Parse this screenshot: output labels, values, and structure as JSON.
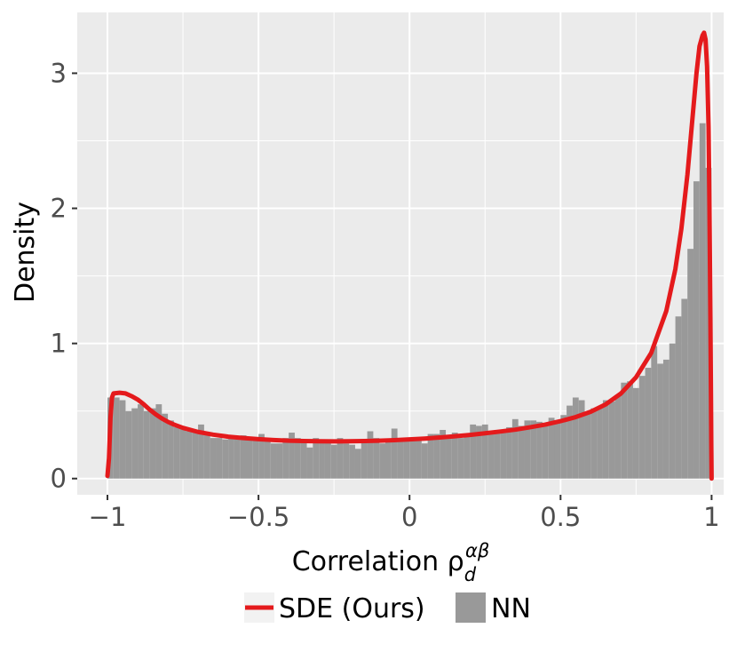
{
  "chart_data": {
    "type": "histogram-density",
    "xlabel": "Correlation ρ",
    "xlabel_sub": "d",
    "xlabel_sup": "αβ",
    "ylabel": "Density",
    "xlim": [
      -1.1,
      1.04
    ],
    "ylim": [
      -0.12,
      3.45
    ],
    "x_ticks": [
      -1,
      -0.5,
      0,
      0.5,
      1
    ],
    "x_tick_labels": [
      "−1",
      "−0.5",
      "0",
      "0.5",
      "1"
    ],
    "y_ticks": [
      0,
      1,
      2,
      3
    ],
    "y_tick_labels": [
      "0",
      "1",
      "2",
      "3"
    ],
    "grid": true,
    "legend_position": "bottom",
    "colors": {
      "panel": "#ebebeb",
      "grid": "#ffffff",
      "line": "#e41a1c",
      "bar": "#999999"
    },
    "series": [
      {
        "name": "SDE (Ours)",
        "type": "line",
        "x": [
          -1.0,
          -0.995,
          -0.99,
          -0.985,
          -0.98,
          -0.96,
          -0.94,
          -0.92,
          -0.9,
          -0.88,
          -0.86,
          -0.84,
          -0.82,
          -0.8,
          -0.78,
          -0.75,
          -0.7,
          -0.65,
          -0.6,
          -0.55,
          -0.5,
          -0.45,
          -0.4,
          -0.35,
          -0.3,
          -0.25,
          -0.2,
          -0.15,
          -0.1,
          -0.05,
          0.0,
          0.05,
          0.1,
          0.15,
          0.2,
          0.25,
          0.3,
          0.35,
          0.4,
          0.45,
          0.5,
          0.55,
          0.6,
          0.65,
          0.7,
          0.75,
          0.8,
          0.85,
          0.88,
          0.9,
          0.92,
          0.94,
          0.95,
          0.96,
          0.97,
          0.975,
          0.98,
          0.985,
          0.99,
          0.993,
          0.996,
          0.998,
          0.999,
          1.0
        ],
        "y": [
          0.02,
          0.15,
          0.45,
          0.6,
          0.63,
          0.635,
          0.63,
          0.61,
          0.585,
          0.55,
          0.51,
          0.475,
          0.445,
          0.42,
          0.4,
          0.375,
          0.345,
          0.325,
          0.31,
          0.3,
          0.292,
          0.285,
          0.28,
          0.278,
          0.276,
          0.275,
          0.276,
          0.278,
          0.28,
          0.284,
          0.29,
          0.296,
          0.304,
          0.313,
          0.323,
          0.335,
          0.348,
          0.362,
          0.38,
          0.4,
          0.425,
          0.455,
          0.495,
          0.55,
          0.63,
          0.75,
          0.93,
          1.24,
          1.55,
          1.85,
          2.25,
          2.75,
          3.0,
          3.2,
          3.28,
          3.3,
          3.25,
          3.05,
          2.6,
          2.0,
          1.2,
          0.6,
          0.25,
          0.0
        ]
      },
      {
        "name": "NN",
        "type": "histogram",
        "bin_start": -1.0,
        "bin_width": 0.02,
        "values": [
          0.6,
          0.6,
          0.58,
          0.5,
          0.52,
          0.55,
          0.5,
          0.52,
          0.55,
          0.48,
          0.43,
          0.38,
          0.37,
          0.35,
          0.35,
          0.4,
          0.32,
          0.3,
          0.3,
          0.29,
          0.3,
          0.3,
          0.32,
          0.31,
          0.28,
          0.33,
          0.3,
          0.26,
          0.26,
          0.3,
          0.34,
          0.3,
          0.27,
          0.23,
          0.3,
          0.28,
          0.29,
          0.25,
          0.3,
          0.26,
          0.25,
          0.22,
          0.29,
          0.35,
          0.3,
          0.26,
          0.28,
          0.37,
          0.3,
          0.3,
          0.3,
          0.3,
          0.26,
          0.33,
          0.33,
          0.36,
          0.31,
          0.34,
          0.3,
          0.31,
          0.4,
          0.39,
          0.4,
          0.35,
          0.36,
          0.36,
          0.38,
          0.44,
          0.39,
          0.43,
          0.43,
          0.42,
          0.39,
          0.45,
          0.41,
          0.47,
          0.54,
          0.6,
          0.58,
          0.48,
          0.52,
          0.53,
          0.58,
          0.57,
          0.62,
          0.71,
          0.72,
          0.67,
          0.76,
          0.82,
          0.98,
          0.85,
          0.88,
          1.0,
          1.2,
          1.33,
          1.7,
          2.2,
          2.63,
          2.3
        ]
      }
    ]
  }
}
